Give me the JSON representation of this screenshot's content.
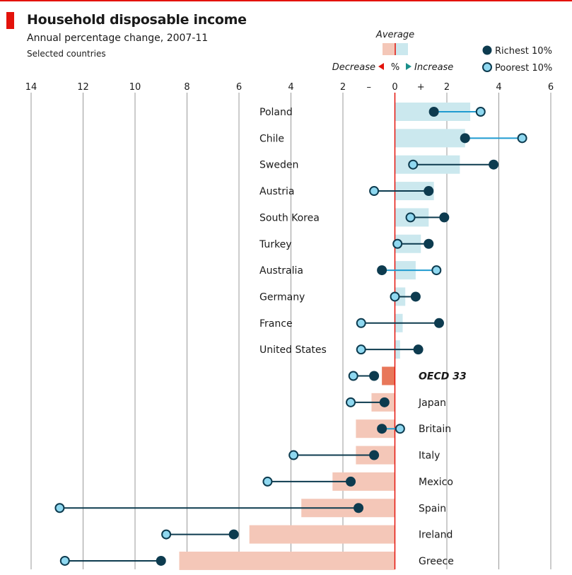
{
  "header": {
    "title": "Household disposable income",
    "subtitle": "Annual percentage change, 2007-11",
    "note": "Selected countries"
  },
  "legend": {
    "average": "Average",
    "decrease": "Decrease",
    "increase": "Increase",
    "percent": "%",
    "richest": "Richest 10%",
    "poorest": "Poorest 10%"
  },
  "colors": {
    "accent": "#e3120b",
    "richest": "#0d3b4f",
    "poorest": "#8fd8f0",
    "avg_increase": "#cbe8ee",
    "avg_decrease": "#f4c7b8",
    "avg_oecd": "#e8775a",
    "zero_line": "#e3120b",
    "grid": "#999999",
    "connector_poor_higher": "#1f9bd0",
    "connector_rich_higher": "#0d3b4f"
  },
  "chart_data": {
    "type": "dumbbell",
    "xlim": [
      -14,
      6
    ],
    "x_ticks": [
      "14",
      "12",
      "10",
      "8",
      "6",
      "4",
      "2",
      "0",
      "2",
      "4",
      "6"
    ],
    "minus_sign": "–",
    "plus_sign": "+",
    "series": [
      {
        "name": "Richest 10%",
        "key": "richest"
      },
      {
        "name": "Poorest 10%",
        "key": "poorest"
      },
      {
        "name": "Average",
        "key": "average"
      }
    ],
    "countries": [
      {
        "name": "Poland",
        "average": 2.9,
        "richest": 1.5,
        "poorest": 3.3
      },
      {
        "name": "Chile",
        "average": 2.7,
        "richest": 2.7,
        "poorest": 4.9
      },
      {
        "name": "Sweden",
        "average": 2.5,
        "richest": 3.8,
        "poorest": 0.7
      },
      {
        "name": "Austria",
        "average": 1.5,
        "richest": 1.3,
        "poorest": -0.8
      },
      {
        "name": "South Korea",
        "average": 1.3,
        "richest": 1.9,
        "poorest": 0.6
      },
      {
        "name": "Turkey",
        "average": 1.0,
        "richest": 1.3,
        "poorest": 0.1
      },
      {
        "name": "Australia",
        "average": 0.8,
        "richest": -0.5,
        "poorest": 1.6
      },
      {
        "name": "Germany",
        "average": 0.4,
        "richest": 0.8,
        "poorest": 0.0
      },
      {
        "name": "France",
        "average": 0.3,
        "richest": 1.7,
        "poorest": -1.3
      },
      {
        "name": "United States",
        "average": 0.2,
        "richest": 0.9,
        "poorest": -1.3
      },
      {
        "name": "OECD 33",
        "average": -0.5,
        "richest": -0.8,
        "poorest": -1.6,
        "emphasis": true
      },
      {
        "name": "Japan",
        "average": -0.9,
        "richest": -0.4,
        "poorest": -1.7
      },
      {
        "name": "Britain",
        "average": -1.5,
        "richest": -0.5,
        "poorest": 0.2
      },
      {
        "name": "Italy",
        "average": -1.5,
        "richest": -0.8,
        "poorest": -3.9
      },
      {
        "name": "Mexico",
        "average": -2.4,
        "richest": -1.7,
        "poorest": -4.9
      },
      {
        "name": "Spain",
        "average": -3.6,
        "richest": -1.4,
        "poorest": -12.9
      },
      {
        "name": "Ireland",
        "average": -5.6,
        "richest": -6.2,
        "poorest": -8.8
      },
      {
        "name": "Greece",
        "average": -8.3,
        "richest": -9.0,
        "poorest": -12.7
      }
    ]
  }
}
